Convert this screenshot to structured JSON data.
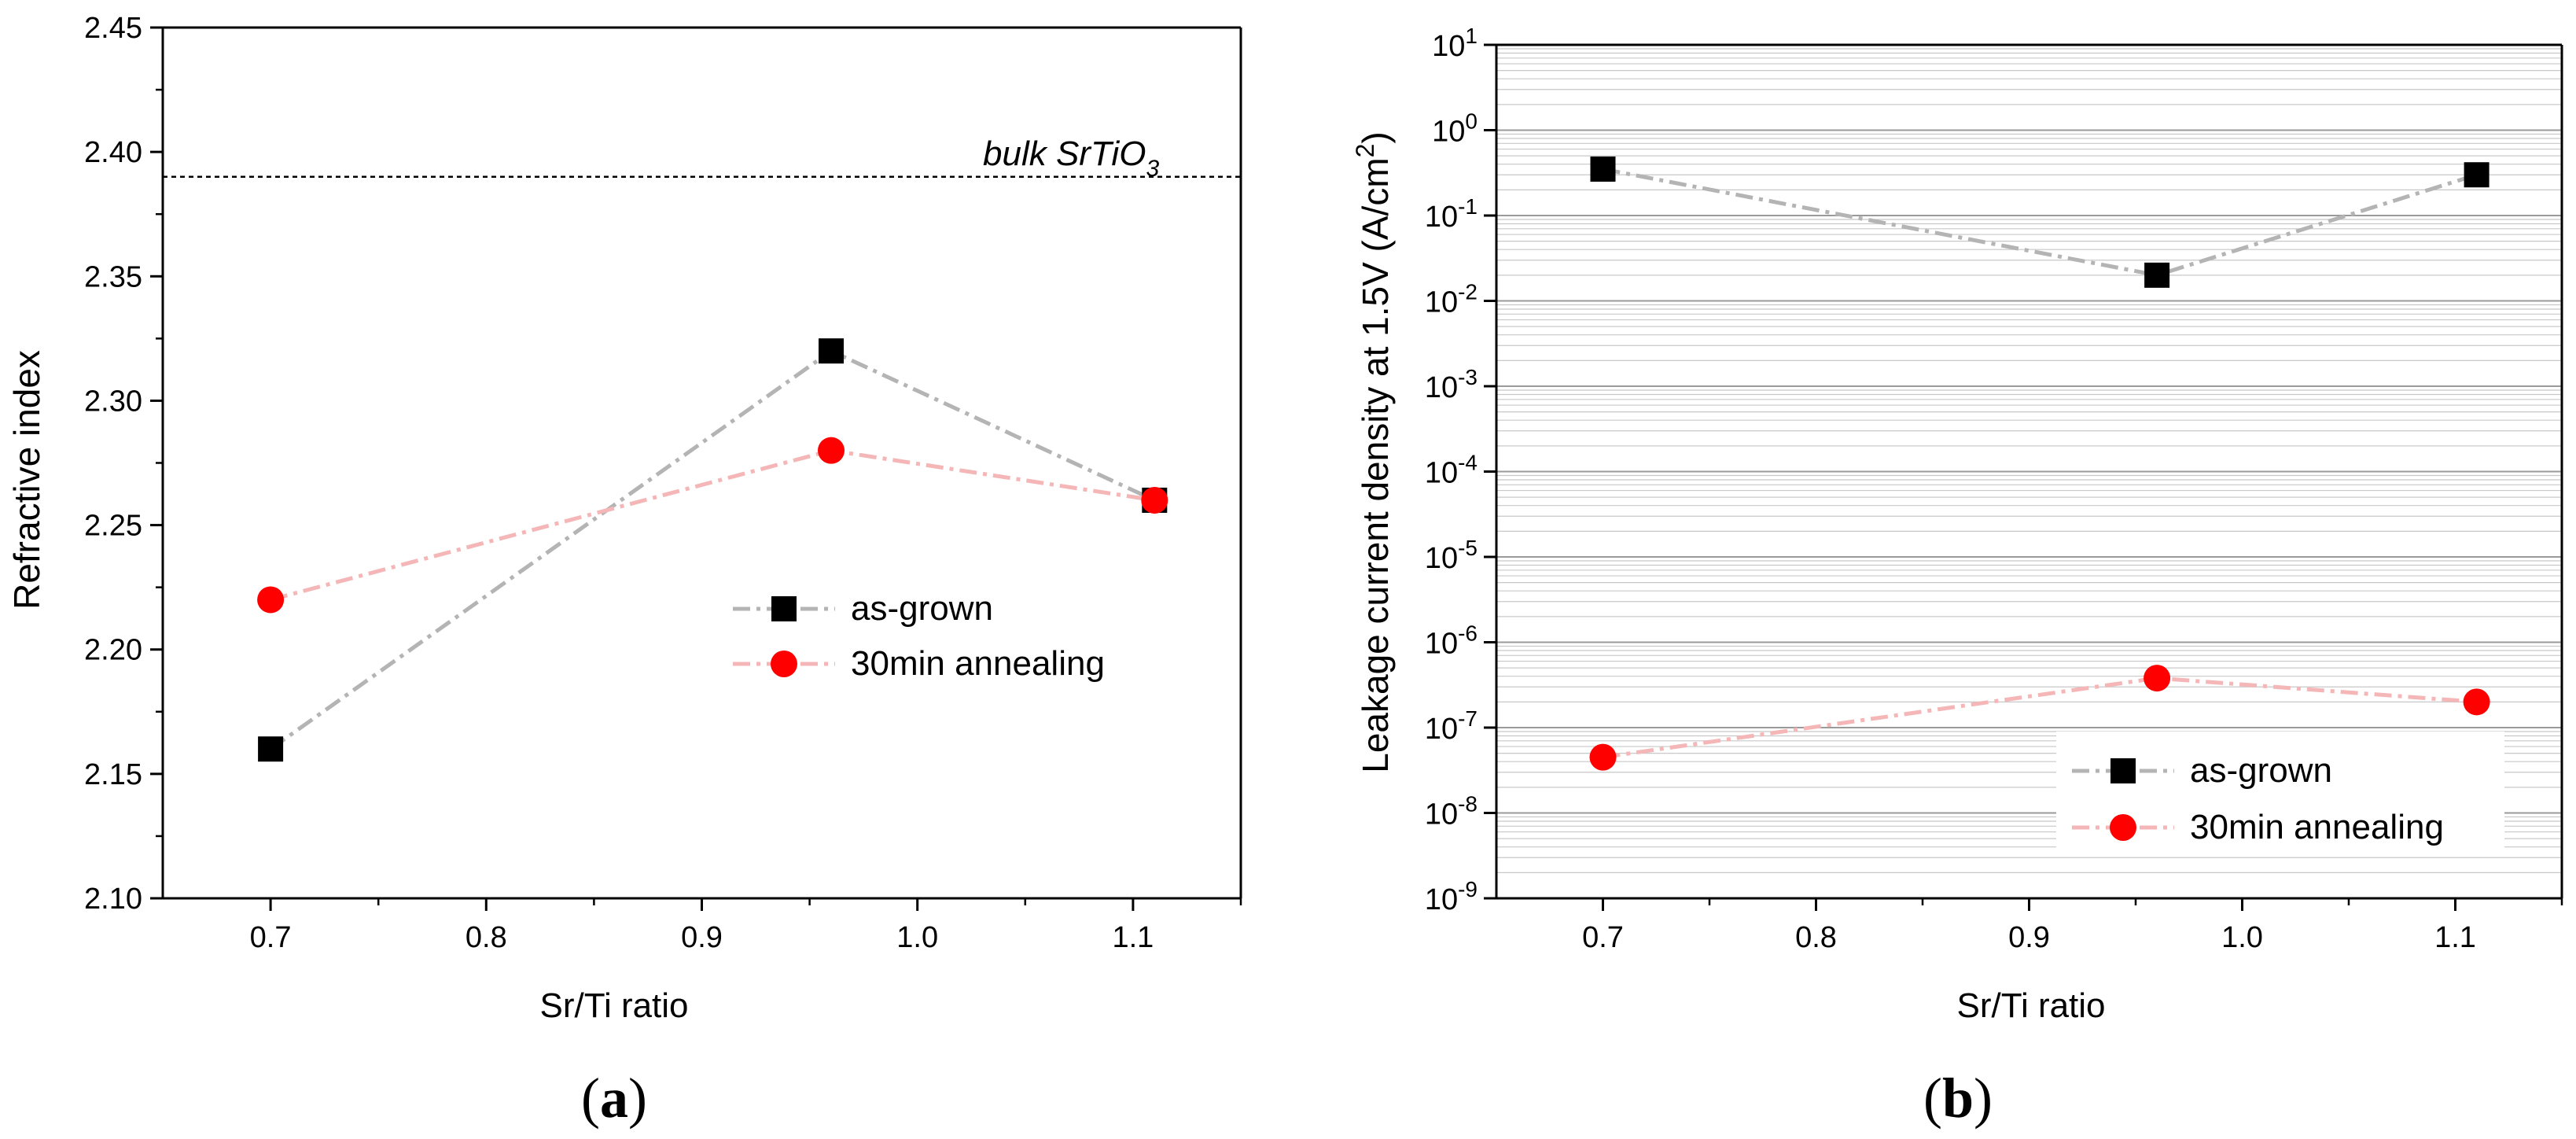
{
  "panels": [
    {
      "panel_label_open": "(",
      "panel_label_letter": "a",
      "panel_label_close": ")",
      "xlabel": "Sr/Ti ratio",
      "ylabel": "Refractive index",
      "reference_line": {
        "value": 2.39,
        "label_prefix": "bulk SrTiO",
        "label_subscript": "3"
      }
    },
    {
      "panel_label_open": "(",
      "panel_label_letter": "b",
      "panel_label_close": ")",
      "xlabel": "Sr/Ti ratio",
      "ylabel_prefix": "Leakage current density at 1.5V (A/cm",
      "ylabel_superscript": "2",
      "ylabel_suffix": ")"
    }
  ],
  "colors": {
    "as_grown_marker": "#000000",
    "as_grown_line": "#b4b4b4",
    "annealing_marker": "#ff0000",
    "annealing_line": "#f4b6b6",
    "axis": "#000000",
    "grid": "#c8c8c8"
  },
  "chart_data": [
    {
      "type": "line",
      "x": [
        0.7,
        0.96,
        1.11
      ],
      "series": [
        {
          "name": "as-grown",
          "marker": "square",
          "values": [
            2.16,
            2.32,
            2.26
          ]
        },
        {
          "name": "30min annealing",
          "marker": "circle",
          "values": [
            2.22,
            2.28,
            2.26
          ]
        }
      ],
      "xlabel": "Sr/Ti ratio",
      "ylabel": "Refractive index",
      "xlim": [
        0.65,
        1.15
      ],
      "ylim": [
        2.1,
        2.45
      ],
      "xticks": [
        0.7,
        0.8,
        0.9,
        1.0,
        1.1
      ],
      "xtick_labels": [
        "0.7",
        "0.8",
        "0.9",
        "1.0",
        "1.1"
      ],
      "yticks": [
        2.1,
        2.15,
        2.2,
        2.25,
        2.3,
        2.35,
        2.4,
        2.45
      ],
      "ytick_labels": [
        "2.10",
        "2.15",
        "2.20",
        "2.25",
        "2.30",
        "2.35",
        "2.40",
        "2.45"
      ],
      "grid": false,
      "legend": "center-right",
      "annotations": [
        {
          "type": "hline",
          "y": 2.39,
          "style": "dotted",
          "text": "bulk SrTiO3"
        }
      ]
    },
    {
      "type": "line",
      "x": [
        0.7,
        0.96,
        1.11
      ],
      "series": [
        {
          "name": "as-grown",
          "marker": "square",
          "values": [
            0.35,
            0.02,
            0.3
          ]
        },
        {
          "name": "30min annealing",
          "marker": "circle",
          "values": [
            4.5e-08,
            3.8e-07,
            2e-07
          ]
        }
      ],
      "xlabel": "Sr/Ti ratio",
      "ylabel": "Leakage current density at 1.5V (A/cm2)",
      "xlim": [
        0.65,
        1.15
      ],
      "ylim": [
        1e-09,
        10
      ],
      "yscale": "log",
      "xticks": [
        0.7,
        0.8,
        0.9,
        1.0,
        1.1
      ],
      "xtick_labels": [
        "0.7",
        "0.8",
        "0.9",
        "1.0",
        "1.1"
      ],
      "yticks": [
        1e-09,
        1e-08,
        1e-07,
        1e-06,
        1e-05,
        0.0001,
        0.001,
        0.01,
        0.1,
        1,
        10
      ],
      "ytick_exponents": [
        "-9",
        "-8",
        "-7",
        "-6",
        "-5",
        "-4",
        "-3",
        "-2",
        "-1",
        "0",
        "1"
      ],
      "ytick_base": "10",
      "grid": true,
      "legend": "bottom-right"
    }
  ]
}
